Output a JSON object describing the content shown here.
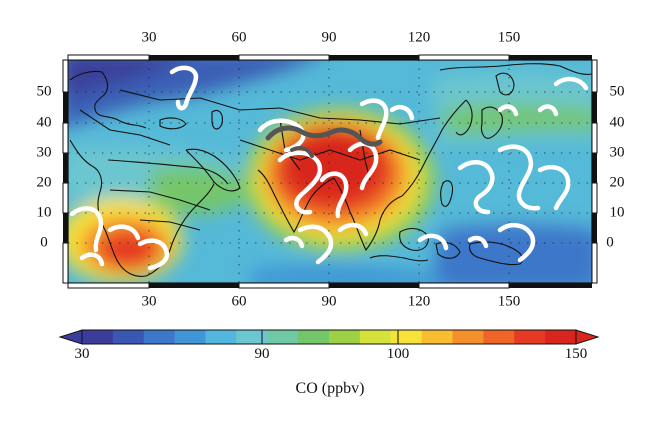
{
  "map": {
    "lon_ticks": [
      "30",
      "60",
      "90",
      "120",
      "150"
    ],
    "lat_ticks": [
      "50",
      "40",
      "30",
      "20",
      "10",
      "0"
    ]
  },
  "colorbar": {
    "ticks": [
      "30",
      "90",
      "100",
      "150"
    ],
    "label": "CO (ppbv)",
    "colors": [
      "#3a3d9b",
      "#3b57b4",
      "#3c77c9",
      "#4096d6",
      "#53b6df",
      "#6cc6cf",
      "#6ec9a4",
      "#74c66a",
      "#9dd045",
      "#d6e23c",
      "#f7e23a",
      "#f8bd31",
      "#f58f2b",
      "#ef6528",
      "#e53b24",
      "#d8261f"
    ]
  }
}
